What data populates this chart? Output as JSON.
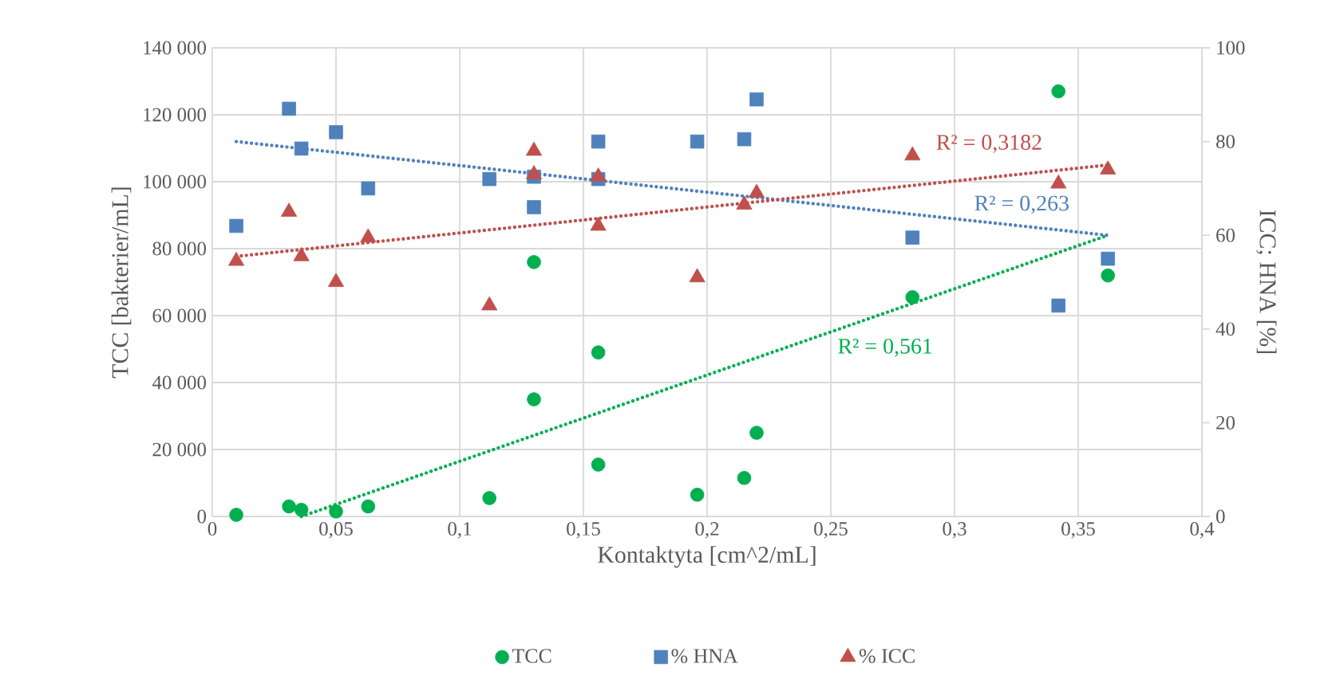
{
  "chart_data": {
    "type": "scatter",
    "xlabel": "Kontaktyta [cm^2/mL]",
    "ylabel": "TCC [bakterier/mL]",
    "y2label": "ICC; HNA [%]",
    "xlim": [
      0,
      0.4
    ],
    "xticks": [
      0,
      {
        "value": 0.05,
        "label": "0,05"
      },
      {
        "value": 0.1,
        "label": "0,1"
      },
      {
        "value": 0.15,
        "label": "0,15"
      },
      {
        "value": 0.2,
        "label": "0,2"
      },
      {
        "value": 0.25,
        "label": "0,25"
      },
      {
        "value": 0.3,
        "label": "0,3"
      },
      {
        "value": 0.35,
        "label": "0,35"
      },
      {
        "value": 0.4,
        "label": "0,4"
      }
    ],
    "ylim": [
      0,
      140000
    ],
    "yticks": [
      0,
      {
        "value": 20000,
        "label": "20 000"
      },
      {
        "value": 40000,
        "label": "40 000"
      },
      {
        "value": 60000,
        "label": "60 000"
      },
      {
        "value": 80000,
        "label": "80 000"
      },
      {
        "value": 100000,
        "label": "100 000"
      },
      {
        "value": 120000,
        "label": "120 000"
      },
      {
        "value": 140000,
        "label": "140 000"
      }
    ],
    "y2lim": [
      0,
      100
    ],
    "y2ticks": [
      0,
      20,
      40,
      60,
      80,
      100
    ],
    "grid": true,
    "legend": "bottom",
    "series": [
      {
        "name": "TCC",
        "color": "#00b050",
        "marker": "circle",
        "axis": "y",
        "x": [
          0.0097,
          0.031,
          0.036,
          0.05,
          0.063,
          0.112,
          0.13,
          0.13,
          0.156,
          0.156,
          0.196,
          0.215,
          0.22,
          0.283,
          0.342,
          0.362
        ],
        "values": [
          500,
          3000,
          2000,
          1500,
          3000,
          5500,
          76000,
          35000,
          49000,
          15500,
          6500,
          11500,
          25000,
          65500,
          127000,
          72000
        ]
      },
      {
        "name": "% HNA",
        "color": "#4f81bd",
        "marker": "square",
        "axis": "y2",
        "x": [
          0.0097,
          0.031,
          0.036,
          0.05,
          0.063,
          0.112,
          0.13,
          0.13,
          0.156,
          0.156,
          0.196,
          0.215,
          0.22,
          0.283,
          0.342,
          0.362
        ],
        "values": [
          62,
          87,
          78.5,
          82,
          70,
          72,
          72.5,
          66,
          80,
          72,
          80,
          80.5,
          89,
          59.5,
          45,
          55
        ]
      },
      {
        "name": "% ICC",
        "color": "#c0504d",
        "marker": "triangle",
        "axis": "y2",
        "x": [
          0.0097,
          0.031,
          0.036,
          0.05,
          0.063,
          0.112,
          0.13,
          0.13,
          0.156,
          0.156,
          0.196,
          0.215,
          0.22,
          0.283,
          0.342,
          0.362
        ],
        "values": [
          54.5,
          65,
          55.5,
          50,
          59.5,
          45,
          78,
          73,
          72.5,
          62,
          51,
          66.5,
          69,
          77,
          71,
          74
        ]
      },
      {
        "type": "line",
        "color": "#00b050",
        "line_style": "dotted",
        "axis": "y",
        "x": [
          0.036,
          0.362
        ],
        "values": [
          0,
          84000
        ]
      },
      {
        "type": "line",
        "color": "#4f81bd",
        "line_style": "dotted",
        "axis": "y2",
        "x": [
          0.0097,
          0.362
        ],
        "values": [
          80,
          60
        ]
      },
      {
        "type": "line",
        "color": "#c0504d",
        "line_style": "dotted",
        "axis": "y2",
        "x": [
          0.0097,
          0.362
        ],
        "values": [
          55.5,
          75
        ]
      }
    ],
    "annotations": [
      "R² = 0,561",
      "R² = 0,263",
      "R² = 0,3182"
    ]
  }
}
